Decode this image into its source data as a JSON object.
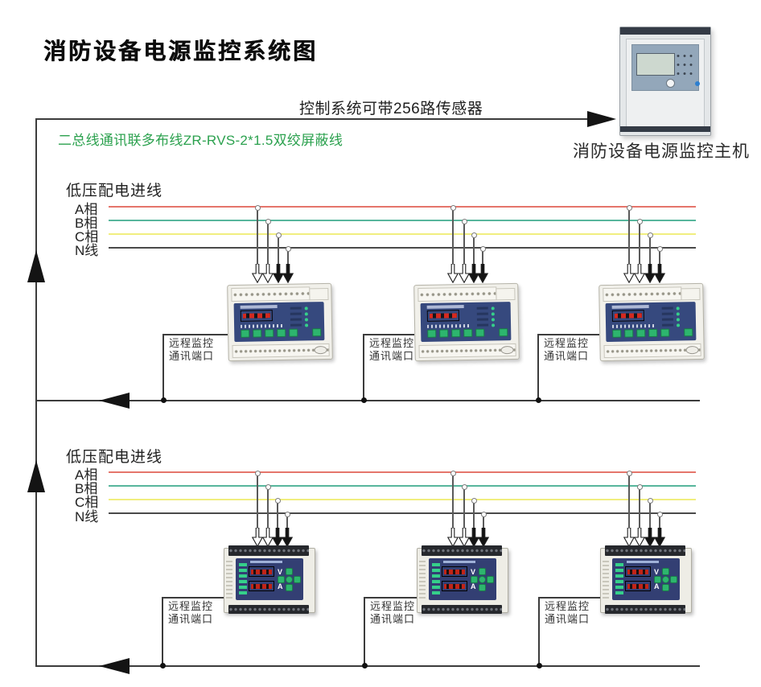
{
  "title": "消防设备电源监控系统图",
  "host": {
    "label": "消防设备电源监控主机"
  },
  "notes": {
    "sensor_capacity": "控制系统可带256路传感器",
    "bus_wire_spec": "二总线通讯联多布线ZR-RVS-2*1.5双绞屏蔽线"
  },
  "device_labels": {
    "volt": "V",
    "amp": "A"
  },
  "colors": {
    "phase_a": "#e5756b",
    "phase_b": "#57b69c",
    "phase_c": "#f1ee7f",
    "phase_n": "#4a4a4a",
    "wire_label_green": "#2ba14e",
    "diagram_line": "#3c3c3c"
  },
  "sections": [
    {
      "feed_label": "低压配电进线",
      "phases": [
        {
          "label": "A相"
        },
        {
          "label": "B相"
        },
        {
          "label": "C相"
        },
        {
          "label": "N线"
        }
      ],
      "port_label": [
        "远程监控",
        "通讯端口"
      ]
    },
    {
      "feed_label": "低压配电进线",
      "phases": [
        {
          "label": "A相"
        },
        {
          "label": "B相"
        },
        {
          "label": "C相"
        },
        {
          "label": "N线"
        }
      ],
      "port_label": [
        "远程监控",
        "通讯端口"
      ]
    }
  ]
}
